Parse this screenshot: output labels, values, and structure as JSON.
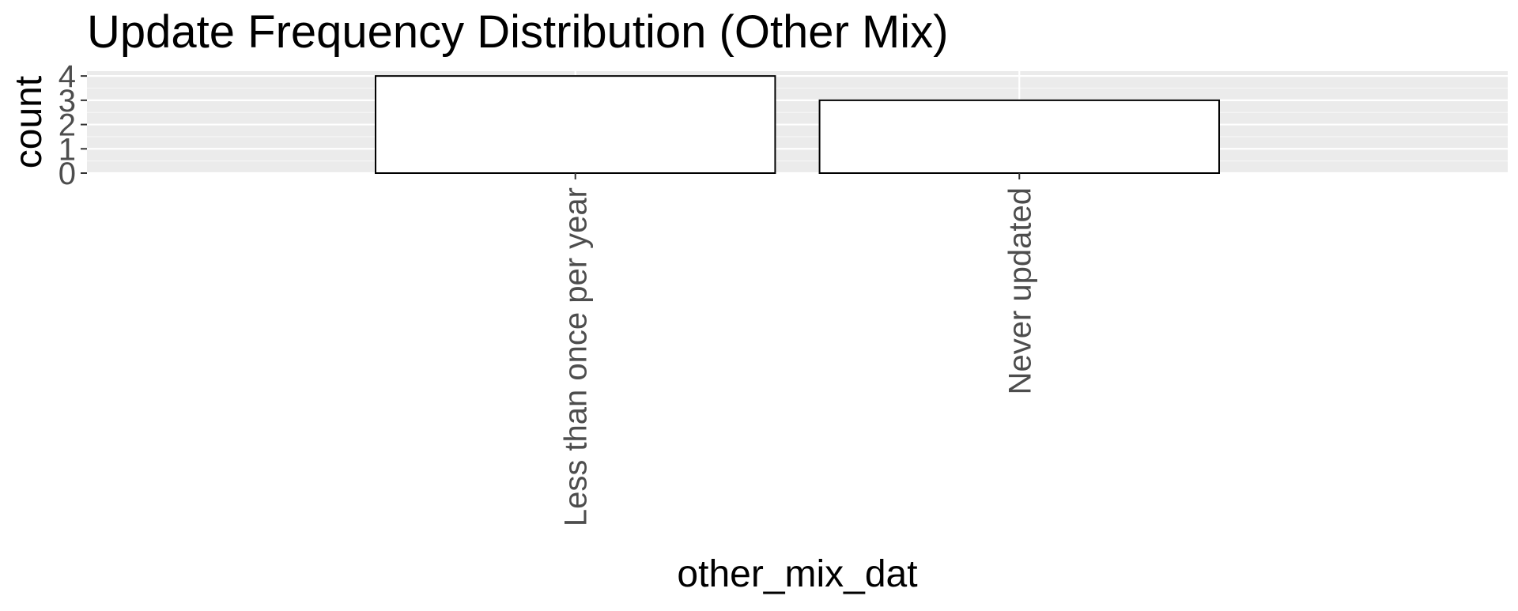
{
  "chart_data": {
    "type": "bar",
    "title": "Update Frequency Distribution (Other Mix)",
    "xlabel": "other_mix_dat",
    "ylabel": "count",
    "categories": [
      "Less than once per year",
      "Never updated"
    ],
    "values": [
      4,
      3
    ],
    "ylim": [
      0,
      4
    ],
    "yticks": [
      "0",
      "1",
      "2",
      "3",
      "4"
    ],
    "grid": true,
    "legend": "none",
    "colors": {
      "panel_background": "#EBEBEB",
      "grid_major": "#FFFFFF",
      "grid_minor": "#F5F5F5",
      "bar_fill": "#FFFFFF",
      "bar_outline": "#000000",
      "tick_label": "#4D4D4D",
      "tick_mark": "#333333",
      "text": "#000000"
    }
  }
}
